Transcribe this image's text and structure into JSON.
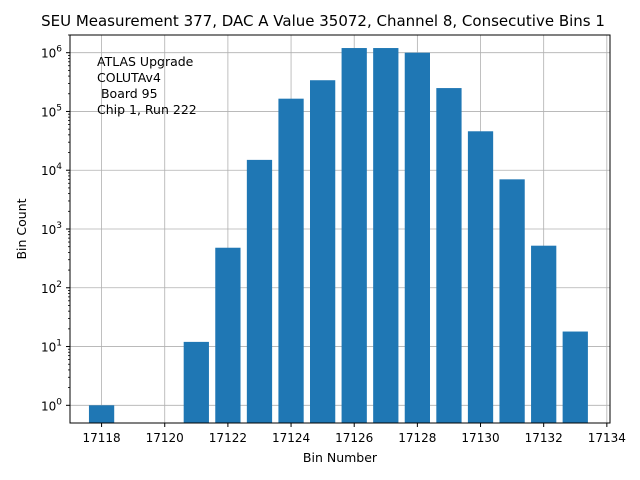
{
  "chart_data": {
    "type": "bar",
    "title": "SEU Measurement 377, DAC A Value 35072, Channel 8, Consecutive Bins 1",
    "xlabel": "Bin Number",
    "ylabel": "Bin Count",
    "yscale": "log",
    "xlim": [
      17117,
      17134.1
    ],
    "ylim": [
      0.5,
      2000000
    ],
    "grid": true,
    "bar_color": "#1f77b4",
    "x_ticks": [
      17118,
      17120,
      17122,
      17124,
      17126,
      17128,
      17130,
      17132,
      17134
    ],
    "y_ticks": [
      {
        "value": 1,
        "base": "10",
        "exp": "0"
      },
      {
        "value": 10,
        "base": "10",
        "exp": "1"
      },
      {
        "value": 100,
        "base": "10",
        "exp": "2"
      },
      {
        "value": 1000,
        "base": "10",
        "exp": "3"
      },
      {
        "value": 10000,
        "base": "10",
        "exp": "4"
      },
      {
        "value": 100000,
        "base": "10",
        "exp": "5"
      },
      {
        "value": 1000000,
        "base": "10",
        "exp": "6"
      }
    ],
    "x": [
      17118,
      17119,
      17120,
      17121,
      17122,
      17123,
      17124,
      17125,
      17126,
      17127,
      17128,
      17129,
      17130,
      17131,
      17132,
      17133
    ],
    "values": [
      1,
      0,
      0,
      12,
      480,
      15000,
      165000,
      340000,
      1200000,
      1200000,
      1000000,
      250000,
      46000,
      7000,
      520,
      18
    ],
    "annotation": [
      "ATLAS Upgrade",
      "COLUTAv4",
      " Board 95",
      "Chip 1, Run 222"
    ]
  }
}
